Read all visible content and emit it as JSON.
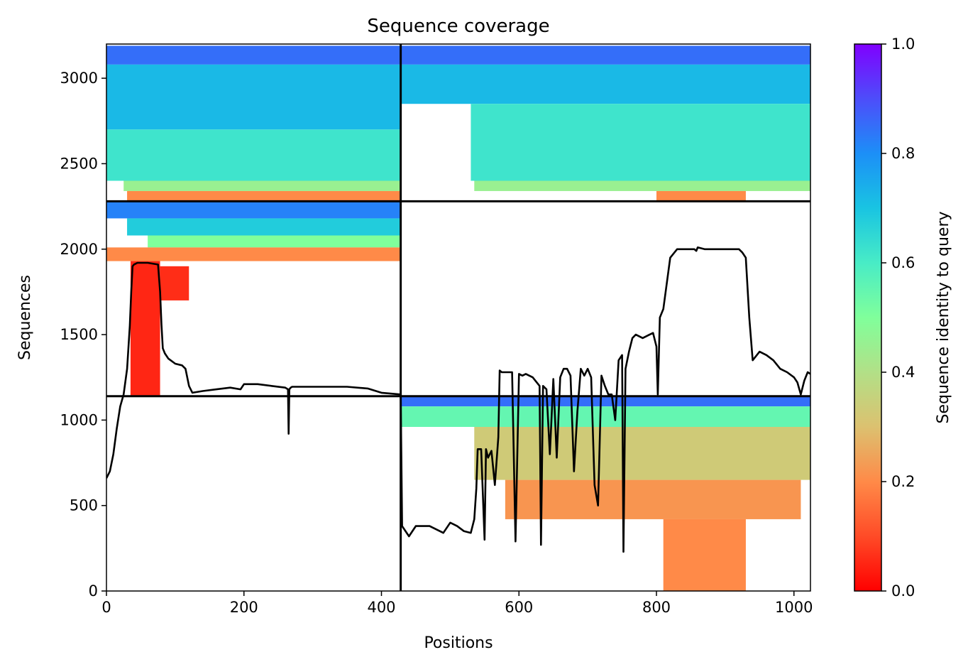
{
  "chart_data": {
    "type": "heatmap",
    "title": "Sequence coverage",
    "xlabel": "Positions",
    "ylabel": "Sequences",
    "xlim": [
      0,
      1024
    ],
    "ylim": [
      0,
      3200
    ],
    "xticks": [
      0,
      200,
      400,
      600,
      800,
      1000
    ],
    "yticks": [
      0,
      500,
      1000,
      1500,
      2000,
      2500,
      3000
    ],
    "grid": false,
    "colorbar": {
      "label": "Sequence identity to query",
      "range": [
        0.0,
        1.0
      ],
      "ticks": [
        "0.0",
        "0.2",
        "0.4",
        "0.6",
        "0.8",
        "1.0"
      ],
      "colormap": "rainbow_r"
    },
    "block_dividers": {
      "x": [
        428
      ],
      "y": [
        1140,
        2280
      ]
    },
    "blocks": [
      {
        "x": [
          0,
          428
        ],
        "y": [
          2280,
          3190
        ],
        "bands": [
          {
            "y0": 3080,
            "y1": 3190,
            "identity": 0.85,
            "x": [
              0,
              428
            ]
          },
          {
            "y0": 2700,
            "y1": 3080,
            "identity": 0.72,
            "x": [
              0,
              428
            ]
          },
          {
            "y0": 2400,
            "y1": 2700,
            "identity": 0.62,
            "x": [
              0,
              428
            ]
          },
          {
            "y0": 2340,
            "y1": 2400,
            "identity": 0.45,
            "x": [
              25,
              428
            ]
          },
          {
            "y0": 2285,
            "y1": 2340,
            "identity": 0.2,
            "x": [
              30,
              428
            ]
          }
        ]
      },
      {
        "x": [
          428,
          1024
        ],
        "y": [
          2280,
          3190
        ],
        "bands": [
          {
            "y0": 3080,
            "y1": 3190,
            "identity": 0.85,
            "x": [
              428,
              1024
            ]
          },
          {
            "y0": 2850,
            "y1": 3080,
            "identity": 0.72,
            "x": [
              428,
              1024
            ]
          },
          {
            "y0": 2400,
            "y1": 2850,
            "identity": 0.62,
            "x": [
              530,
              1024
            ]
          },
          {
            "y0": 2340,
            "y1": 2400,
            "identity": 0.45,
            "x": [
              535,
              1024
            ]
          },
          {
            "y0": 2285,
            "y1": 2340,
            "identity": 0.2,
            "x": [
              800,
              930
            ]
          }
        ]
      },
      {
        "x": [
          0,
          428
        ],
        "y": [
          1140,
          2280
        ],
        "bands": [
          {
            "y0": 2180,
            "y1": 2280,
            "identity": 0.82,
            "x": [
              0,
              428
            ]
          },
          {
            "y0": 2080,
            "y1": 2180,
            "identity": 0.68,
            "x": [
              30,
              428
            ]
          },
          {
            "y0": 2010,
            "y1": 2080,
            "identity": 0.5,
            "x": [
              60,
              428
            ]
          },
          {
            "y0": 1930,
            "y1": 2010,
            "identity": 0.2,
            "x": [
              0,
              428
            ]
          },
          {
            "y0": 1140,
            "y1": 1930,
            "identity": 0.05,
            "x": [
              35,
              78
            ]
          },
          {
            "y0": 1700,
            "y1": 1900,
            "identity": 0.06,
            "x": [
              78,
              120
            ]
          }
        ]
      },
      {
        "x": [
          428,
          1024
        ],
        "y": [
          0,
          1140
        ],
        "bands": [
          {
            "y0": 1080,
            "y1": 1140,
            "identity": 0.85,
            "x": [
              428,
              1024
            ]
          },
          {
            "y0": 960,
            "y1": 1080,
            "identity": 0.55,
            "x": [
              428,
              1024
            ]
          },
          {
            "y0": 650,
            "y1": 960,
            "identity": 0.33,
            "x": [
              535,
              1024
            ]
          },
          {
            "y0": 420,
            "y1": 650,
            "identity": 0.22,
            "x": [
              580,
              1010
            ]
          },
          {
            "y0": 0,
            "y1": 420,
            "identity": 0.2,
            "x": [
              810,
              930
            ]
          }
        ]
      }
    ],
    "coverage_line": {
      "x": [
        0,
        5,
        10,
        15,
        20,
        25,
        30,
        34,
        36,
        38,
        40,
        45,
        60,
        75,
        78,
        80,
        82,
        85,
        90,
        100,
        110,
        115,
        120,
        125,
        140,
        160,
        180,
        195,
        200,
        210,
        220,
        240,
        260,
        264,
        265,
        266,
        268,
        270,
        300,
        350,
        380,
        400,
        428,
        430,
        440,
        450,
        470,
        490,
        500,
        510,
        520,
        530,
        535,
        538,
        540,
        545,
        550,
        552,
        555,
        560,
        565,
        570,
        572,
        575,
        580,
        590,
        595,
        600,
        605,
        610,
        620,
        630,
        632,
        635,
        640,
        645,
        650,
        655,
        660,
        665,
        670,
        675,
        680,
        685,
        690,
        695,
        700,
        705,
        710,
        715,
        720,
        725,
        730,
        735,
        740,
        745,
        750,
        752,
        755,
        760,
        765,
        770,
        780,
        790,
        795,
        800,
        802,
        805,
        810,
        820,
        830,
        840,
        855,
        858,
        860,
        870,
        880,
        900,
        920,
        925,
        930,
        935,
        940,
        950,
        960,
        970,
        980,
        990,
        1000,
        1005,
        1010,
        1015,
        1020,
        1024
      ],
      "y": [
        660,
        700,
        800,
        950,
        1080,
        1150,
        1300,
        1550,
        1750,
        1900,
        1910,
        1920,
        1920,
        1910,
        1750,
        1560,
        1420,
        1390,
        1360,
        1330,
        1320,
        1300,
        1200,
        1160,
        1170,
        1180,
        1190,
        1180,
        1210,
        1210,
        1210,
        1200,
        1190,
        1180,
        920,
        1180,
        1190,
        1195,
        1195,
        1195,
        1185,
        1160,
        1150,
        380,
        320,
        380,
        380,
        340,
        400,
        380,
        350,
        340,
        420,
        600,
        830,
        830,
        300,
        830,
        780,
        820,
        620,
        900,
        1290,
        1280,
        1280,
        1280,
        290,
        1270,
        1260,
        1270,
        1250,
        1200,
        270,
        1200,
        1180,
        800,
        1240,
        780,
        1250,
        1300,
        1300,
        1260,
        700,
        1050,
        1300,
        1260,
        1300,
        1250,
        620,
        500,
        1260,
        1200,
        1150,
        1150,
        1000,
        1350,
        1380,
        230,
        1300,
        1400,
        1480,
        1500,
        1480,
        1500,
        1510,
        1430,
        1150,
        1600,
        1650,
        1950,
        2000,
        2000,
        2000,
        1990,
        2010,
        2000,
        2000,
        2000,
        2000,
        1980,
        1950,
        1600,
        1350,
        1400,
        1380,
        1350,
        1300,
        1280,
        1250,
        1220,
        1150,
        1230,
        1280,
        1270
      ]
    }
  }
}
